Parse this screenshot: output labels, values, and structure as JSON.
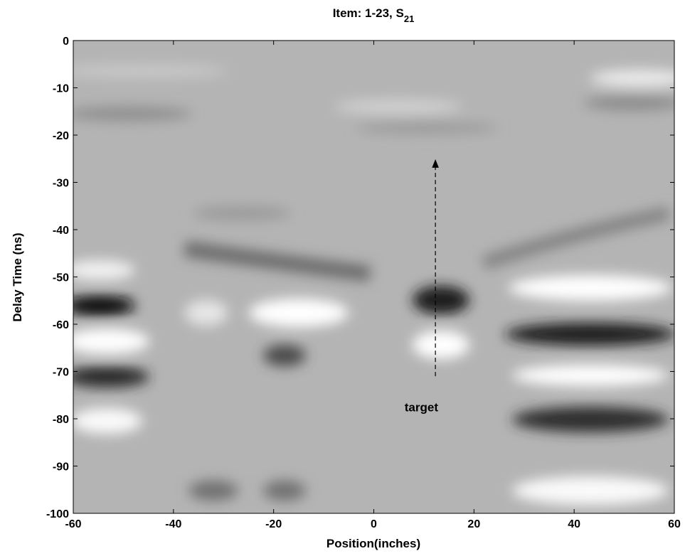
{
  "chart_data": {
    "type": "image",
    "title": "Item: 1-23, S",
    "title_subscript": "21",
    "x_label": "Position(inches)",
    "y_label": "Delay Time (ns)",
    "xlim": [
      -60,
      60
    ],
    "ylim": [
      -100,
      0
    ],
    "xticks": [
      -60,
      -40,
      -20,
      0,
      20,
      40,
      60
    ],
    "yticks": [
      0,
      -10,
      -20,
      -30,
      -40,
      -50,
      -60,
      -70,
      -80,
      -90,
      -100
    ],
    "annotation": {
      "text": "target",
      "x": 9.5,
      "y": -77.5,
      "arrow_x": 12.3,
      "arrow_from": -71,
      "arrow_to": -26
    }
  }
}
